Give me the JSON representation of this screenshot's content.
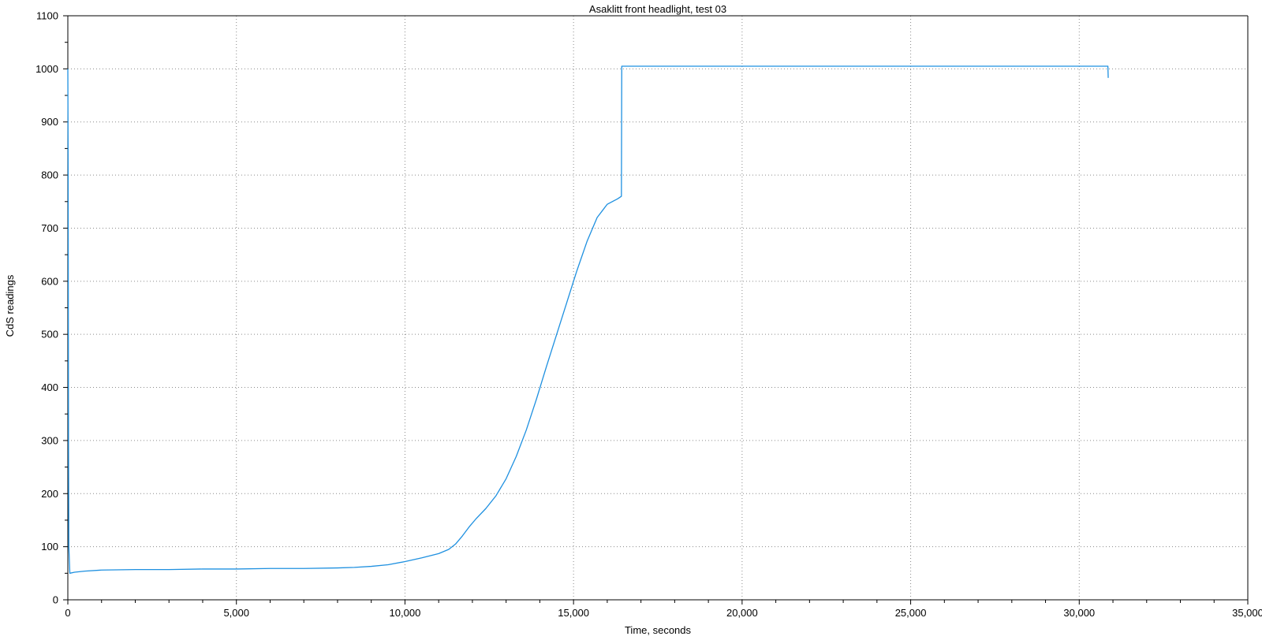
{
  "chart_data": {
    "type": "line",
    "title": "Asaklitt front headlight, test 03",
    "xlabel": "Time, seconds",
    "ylabel": "CdS readings",
    "xlim": [
      0,
      35000
    ],
    "ylim": [
      0,
      1100
    ],
    "x_ticks": [
      0,
      5000,
      10000,
      15000,
      20000,
      25000,
      30000,
      35000
    ],
    "x_tick_labels": [
      "0",
      "5,000",
      "10,000",
      "15,000",
      "20,000",
      "25,000",
      "30,000",
      "35,000"
    ],
    "y_ticks": [
      0,
      100,
      200,
      300,
      400,
      500,
      600,
      700,
      800,
      900,
      1000,
      1100
    ],
    "y_tick_labels": [
      "0",
      "100",
      "200",
      "300",
      "400",
      "500",
      "600",
      "700",
      "800",
      "900",
      "1000",
      "1100"
    ],
    "x_minor_step": 1000,
    "y_minor_step": 50,
    "grid": true,
    "legend": "none",
    "series": [
      {
        "color": "#1e90e0",
        "x": [
          0,
          10,
          20,
          30,
          60,
          200,
          500,
          1000,
          2000,
          3000,
          4000,
          5000,
          6000,
          7000,
          8000,
          8500,
          9000,
          9500,
          10000,
          10500,
          11000,
          11300,
          11500,
          11700,
          11900,
          12100,
          12400,
          12700,
          13000,
          13300,
          13600,
          13900,
          14200,
          14500,
          14800,
          15100,
          15400,
          15700,
          16000,
          16300,
          16420,
          16430,
          16440,
          20000,
          25000,
          30000,
          30850,
          30860
        ],
        "y": [
          1000,
          800,
          300,
          100,
          50,
          52,
          54,
          56,
          57,
          57,
          58,
          58,
          59,
          59,
          60,
          61,
          63,
          66,
          72,
          79,
          87,
          95,
          105,
          120,
          137,
          152,
          172,
          196,
          228,
          270,
          320,
          378,
          440,
          500,
          560,
          620,
          675,
          720,
          745,
          755,
          760,
          1005,
          1005,
          1005,
          1005,
          1005,
          1005,
          983
        ]
      }
    ]
  }
}
